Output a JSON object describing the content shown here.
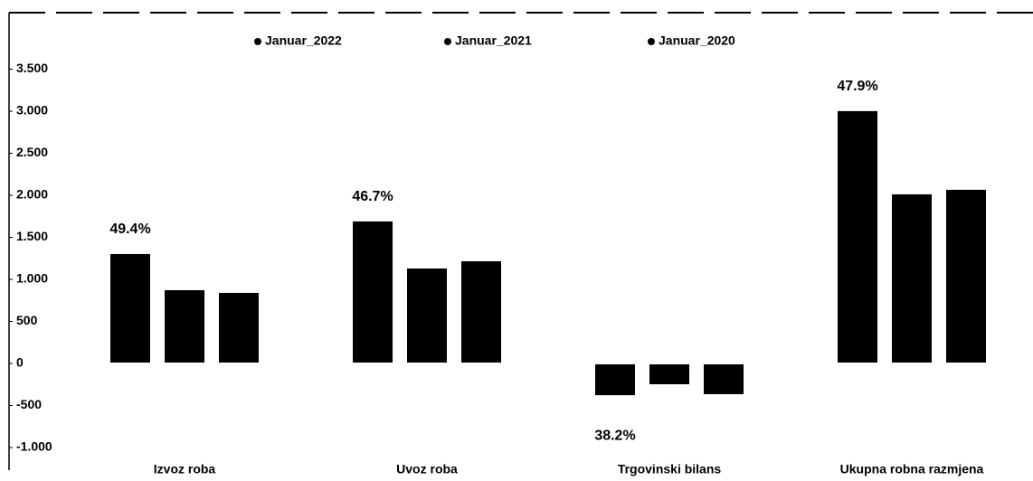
{
  "chart_data": {
    "type": "bar",
    "categories": [
      "Izvoz roba",
      "Uvoz roba",
      "Trgovinski bilans",
      "Ukupna robna razmjena"
    ],
    "series": [
      {
        "name": "Januar_2022",
        "color": "#000000",
        "values": [
          1312,
          1700,
          -388,
          3012
        ]
      },
      {
        "name": "Januar_2021",
        "color": "#000000",
        "values": [
          882,
          1140,
          -258,
          2022
        ]
      },
      {
        "name": "Januar_2020",
        "color": "#000000",
        "values": [
          850,
          1226,
          -376,
          2076
        ]
      }
    ],
    "annotations": [
      "49.4%",
      "46.7%",
      "38.2%",
      "47.9%"
    ],
    "ylim": [
      -1000,
      4000
    ],
    "yticks": [
      {
        "value": -1000,
        "label": "-1.000"
      },
      -500,
      0,
      500,
      {
        "value": 1000,
        "label": "1.000"
      },
      {
        "value": 1500,
        "label": "1.500"
      },
      {
        "value": 2000,
        "label": "2.000"
      },
      {
        "value": 2500,
        "label": "2.500"
      },
      {
        "value": 3000,
        "label": "3.000"
      },
      {
        "value": 3500,
        "label": "3.500"
      }
    ],
    "grid": false,
    "legend": "top"
  }
}
